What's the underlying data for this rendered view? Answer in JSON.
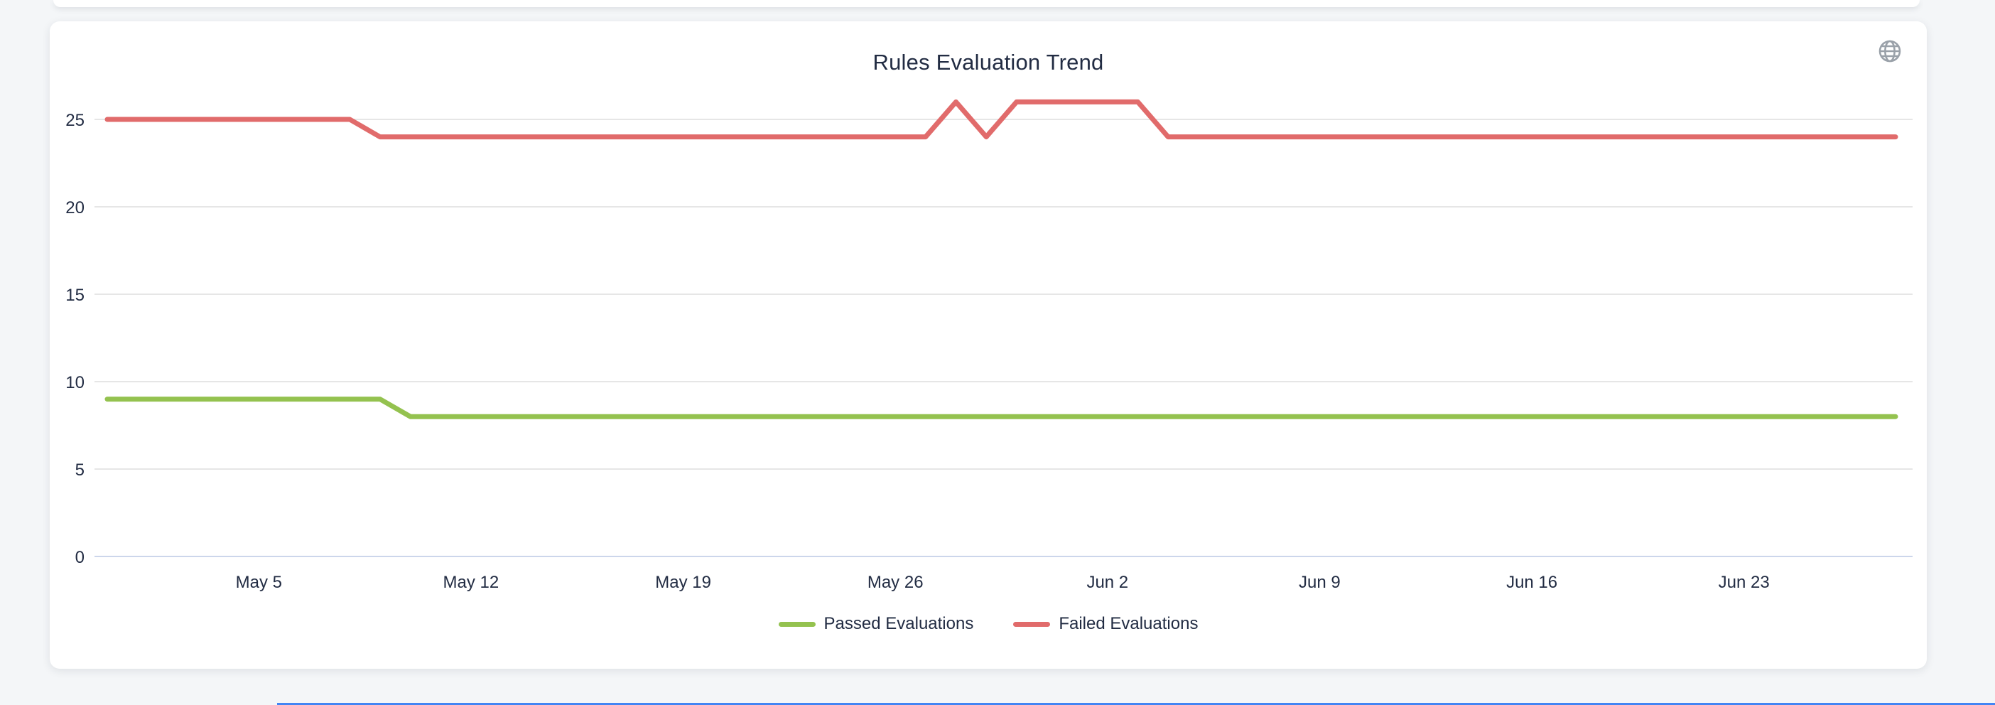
{
  "card": {
    "title": "Rules Evaluation Trend"
  },
  "icons": {
    "globe": "globe-icon"
  },
  "colors": {
    "page_background": "#f4f6f8",
    "card_background": "#ffffff",
    "text": "#222c43",
    "grid_line": "#e6e6e6",
    "axis_line": "#ccd6eb",
    "globe_icon": "#9aa1a9",
    "passed_series": "#94c24f",
    "failed_series": "#e16b6b",
    "bottom_accent": "#4285f4"
  },
  "chart_data": {
    "type": "line",
    "title": "Rules Evaluation Trend",
    "xlabel": "",
    "ylabel": "",
    "grid": true,
    "legend_position": "bottom",
    "ylim": [
      0,
      27.4
    ],
    "y_ticks": [
      0,
      5,
      10,
      15,
      20,
      25
    ],
    "tick_labels": [
      "May 5",
      "May 12",
      "May 19",
      "May 26",
      "Jun 2",
      "Jun 9",
      "Jun 16",
      "Jun 23"
    ],
    "tick_indices": [
      5,
      12,
      19,
      26,
      33,
      40,
      47,
      54
    ],
    "x": [
      "Apr 30",
      "May 1",
      "May 2",
      "May 3",
      "May 4",
      "May 5",
      "May 6",
      "May 7",
      "May 8",
      "May 9",
      "May 10",
      "May 11",
      "May 12",
      "May 13",
      "May 14",
      "May 15",
      "May 16",
      "May 17",
      "May 18",
      "May 19",
      "May 20",
      "May 21",
      "May 22",
      "May 23",
      "May 24",
      "May 25",
      "May 26",
      "May 27",
      "May 28",
      "May 29",
      "May 30",
      "May 31",
      "Jun 1",
      "Jun 2",
      "Jun 3",
      "Jun 4",
      "Jun 5",
      "Jun 6",
      "Jun 7",
      "Jun 8",
      "Jun 9",
      "Jun 10",
      "Jun 11",
      "Jun 12",
      "Jun 13",
      "Jun 14",
      "Jun 15",
      "Jun 16",
      "Jun 17",
      "Jun 18",
      "Jun 19",
      "Jun 20",
      "Jun 21",
      "Jun 22",
      "Jun 23",
      "Jun 24",
      "Jun 25",
      "Jun 26",
      "Jun 27",
      "Jun 28"
    ],
    "series": [
      {
        "name": "Passed Evaluations",
        "color": "#94c24f",
        "values": [
          9,
          9,
          9,
          9,
          9,
          9,
          9,
          9,
          9,
          9,
          8,
          8,
          8,
          8,
          8,
          8,
          8,
          8,
          8,
          8,
          8,
          8,
          8,
          8,
          8,
          8,
          8,
          8,
          8,
          8,
          8,
          8,
          8,
          8,
          8,
          8,
          8,
          8,
          8,
          8,
          8,
          8,
          8,
          8,
          8,
          8,
          8,
          8,
          8,
          8,
          8,
          8,
          8,
          8,
          8,
          8,
          8,
          8,
          8,
          8
        ]
      },
      {
        "name": "Failed Evaluations",
        "color": "#e16b6b",
        "values": [
          25,
          25,
          25,
          25,
          25,
          25,
          25,
          25,
          25,
          24,
          24,
          24,
          24,
          24,
          24,
          24,
          24,
          24,
          24,
          24,
          24,
          24,
          24,
          24,
          24,
          24,
          24,
          24,
          26,
          24,
          26,
          26,
          26,
          26,
          26,
          24,
          24,
          24,
          24,
          24,
          24,
          24,
          24,
          24,
          24,
          24,
          24,
          24,
          24,
          24,
          24,
          24,
          24,
          24,
          24,
          24,
          24,
          24,
          24,
          24
        ]
      }
    ]
  }
}
